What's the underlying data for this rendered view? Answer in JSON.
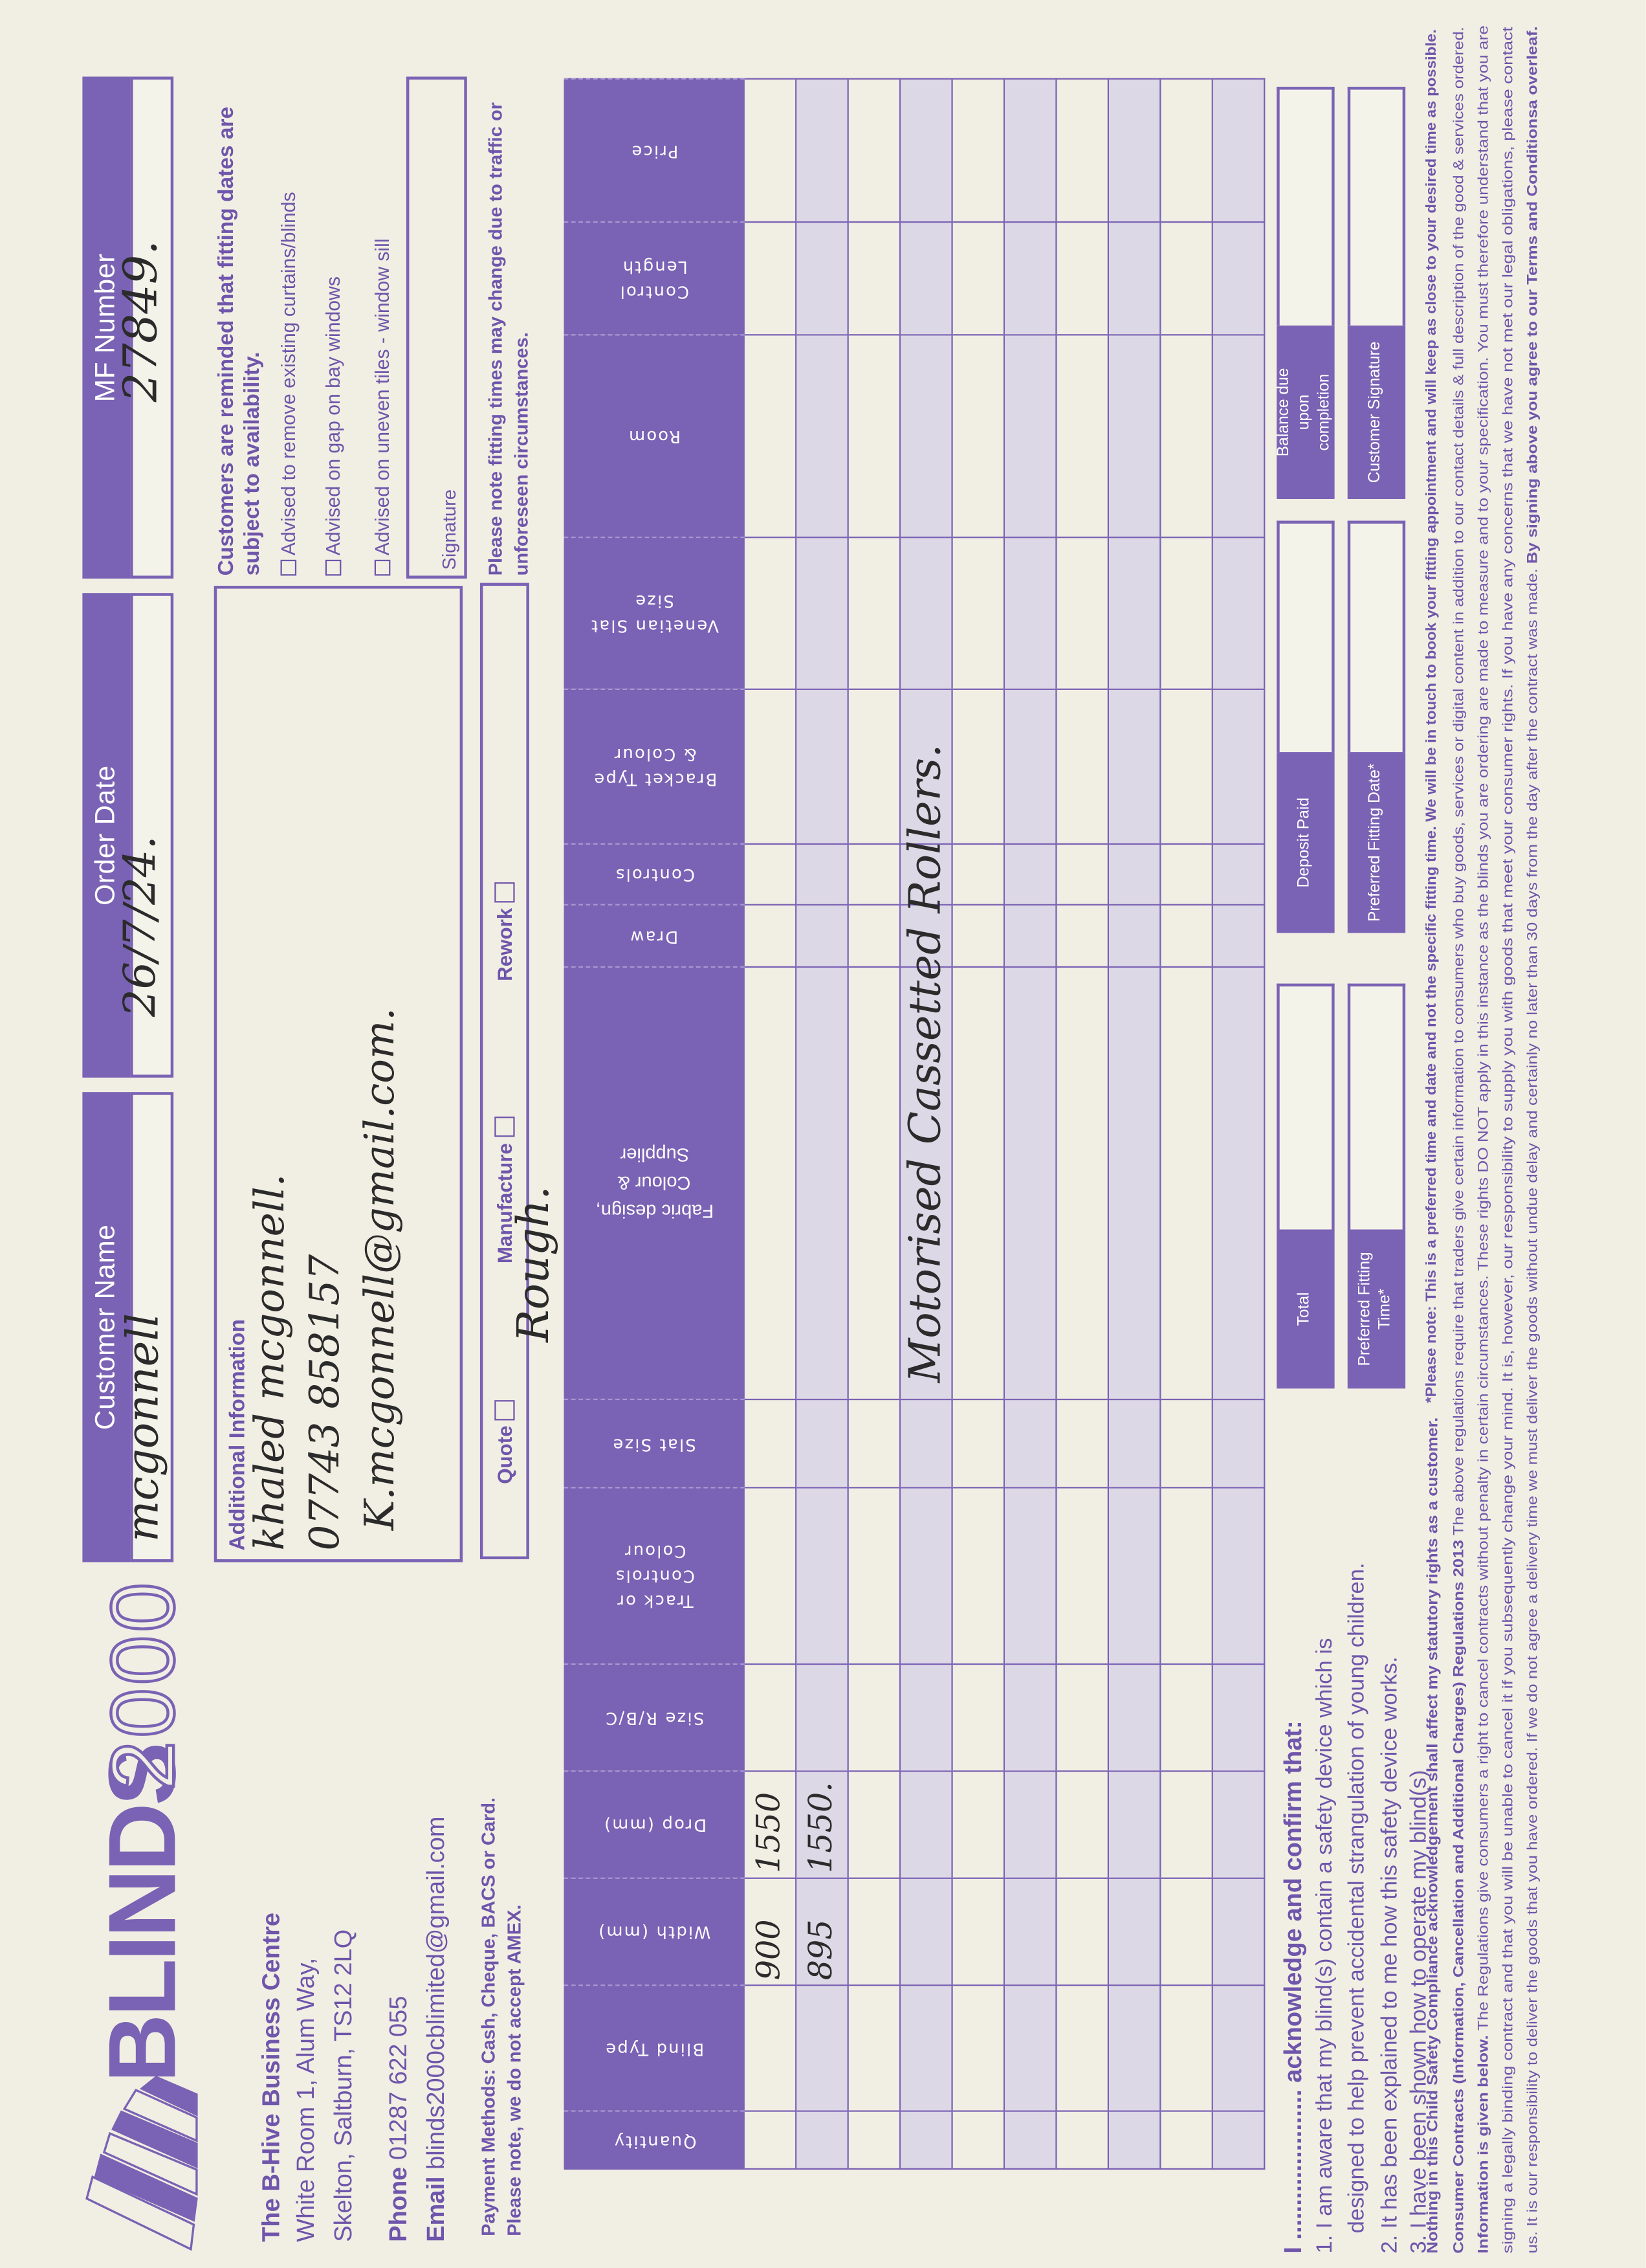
{
  "brand": {
    "name_bold": "BLINDS",
    "name_outline": "2000",
    "accent_color": "#7a62b4",
    "shade_color": "#ddd8e6"
  },
  "company": {
    "line1": "The B-Hive Business Centre",
    "line2": "White Room 1, Alum Way,",
    "line3": "Skelton, Saltburn, TS12 2LQ",
    "phone_label": "Phone",
    "phone": "01287 622 055",
    "email_label": "Email",
    "email": "blinds2000cblimited@gmail.com"
  },
  "fields": {
    "customer_name": {
      "label": "Customer Name",
      "value": "mcgonnell"
    },
    "order_date": {
      "label": "Order Date",
      "value": "26/7/24."
    },
    "mf_number": {
      "label": "MF Number",
      "value": "27849."
    }
  },
  "additional_info": {
    "title": "Additional Information",
    "lines": [
      "khaled mcgonnell.",
      "07743 858157",
      "K.mcgonnell@gmail.com."
    ]
  },
  "notices": {
    "reminder": "Customers are reminded that fitting dates are subject to availability.",
    "checks": [
      {
        "label": "Advised to remove existing curtains/blinds",
        "checked": false
      },
      {
        "label": "Advised on gap on bay windows",
        "checked": false
      },
      {
        "label": "Advised on uneven tiles - window sill",
        "checked": false
      }
    ],
    "signature_label": "Signature",
    "fitting_note": "Please note fitting times may change due to traffic or unforeseen circumstances."
  },
  "payment": {
    "line1": "Payment Methods: Cash, Cheque, BACS or Card.",
    "line2": "Please note, we do not accept AMEX."
  },
  "order_type": {
    "options": [
      {
        "label": "Quote",
        "checked": false
      },
      {
        "label": "Manufacture",
        "checked": false
      },
      {
        "label": "Rework",
        "checked": false
      }
    ],
    "handwritten_note": "Rough."
  },
  "table": {
    "columns": [
      "Quantity",
      "Blind Type",
      "Width (mm)",
      "Drop (mm)",
      "Size R/B/C",
      "Track or\nControls\nColour",
      "Slat Size",
      "Fabric design,\nColour &\nSupplier",
      "Draw",
      "Controls",
      "Bracket Type\n& Colour",
      "Venetian Slat\nSize",
      "Room",
      "Control\nLength",
      "Price"
    ],
    "rows": [
      [
        "",
        "",
        "900",
        "1550",
        "",
        "",
        "",
        "",
        "",
        "",
        "",
        "",
        "",
        "",
        ""
      ],
      [
        "",
        "",
        "895",
        "1550.",
        "",
        "",
        "",
        "",
        "",
        "",
        "",
        "",
        "",
        "",
        ""
      ],
      [
        "",
        "",
        "",
        "",
        "",
        "",
        "",
        "",
        "",
        "",
        "",
        "",
        "",
        "",
        ""
      ],
      [
        "",
        "",
        "",
        "",
        "",
        "",
        "",
        "Motorised Cassetted Rollers.",
        "",
        "",
        "",
        "",
        "",
        "",
        ""
      ],
      [
        "",
        "",
        "",
        "",
        "",
        "",
        "",
        "",
        "",
        "",
        "",
        "",
        "",
        "",
        ""
      ],
      [
        "",
        "",
        "",
        "",
        "",
        "",
        "",
        "",
        "",
        "",
        "",
        "",
        "",
        "",
        ""
      ],
      [
        "",
        "",
        "",
        "",
        "",
        "",
        "",
        "",
        "",
        "",
        "",
        "",
        "",
        "",
        ""
      ],
      [
        "",
        "",
        "",
        "",
        "",
        "",
        "",
        "",
        "",
        "",
        "",
        "",
        "",
        "",
        ""
      ],
      [
        "",
        "",
        "",
        "",
        "",
        "",
        "",
        "",
        "",
        "",
        "",
        "",
        "",
        "",
        ""
      ],
      [
        "",
        "",
        "",
        "",
        "",
        "",
        "",
        "",
        "",
        "",
        "",
        "",
        "",
        "",
        ""
      ]
    ]
  },
  "acknowledgement": {
    "heading_prefix": "I ......................",
    "heading": "acknowledge and confirm that:",
    "line1": "1. I am aware that my blind(s) contain a safety device which is",
    "line1b": "designed to help prevent accidental strangulation of young children.",
    "line2": "2. It has been explained to me how this safety device works.",
    "line3": "3. I have been shown how to operate my blind(s)"
  },
  "summary_boxes": [
    {
      "label": "Total",
      "value": ""
    },
    {
      "label": "Deposit Paid",
      "value": ""
    },
    {
      "label": "Balance due upon completion",
      "value": ""
    },
    {
      "label": "Preferred Fitting Time*",
      "value": ""
    },
    {
      "label": "Preferred Fitting Date*",
      "value": ""
    },
    {
      "label": "Customer Signature",
      "value": ""
    }
  ],
  "fine_print": {
    "statutory": "Nothing in this Child Safety Compliance acknowledgement shall affect my statutory rights as a customer.",
    "preferred_note": "*Please note: This is a preferred time and date and not the specific fitting time. We will be in touch to book your fitting appointment and will keep as close to your desired time as possible.",
    "regs_title": "Consumer Contracts (Information, Cancellation and Additional Charges) Regulations 2013",
    "regs_text": " The above regulations require that traders give certain information to consumers who buy goods, services or digital content in addition to our contact details & full description of the good & services ordered.",
    "info_title": "Information is given below.",
    "info_text": " The Regulations give consumers a right to cancel contracts without penalty in certain circumstances. These rights DO NOT apply in this instance as the blinds you are ordering are made to measure and to your specification. You must therefore understand that you are",
    "line_signing": "signing a legally binding contract and that you will be unable to cancel it if you subsequently change your mind. It is, however, our responsibility to supply you with goods that meet your consumer rights. If you have any concerns that we have not met our legal obligations, please contact",
    "line_us": "us. It is our responsibility to deliver the goods that you have ordered. If we do not agree a delivery time we must deliver the goods without undue delay and certainly no later than 30 days from the day after the contract was made. ",
    "line_us_bold": "By signing above you agree to our Terms and Conditionsa overleaf."
  }
}
